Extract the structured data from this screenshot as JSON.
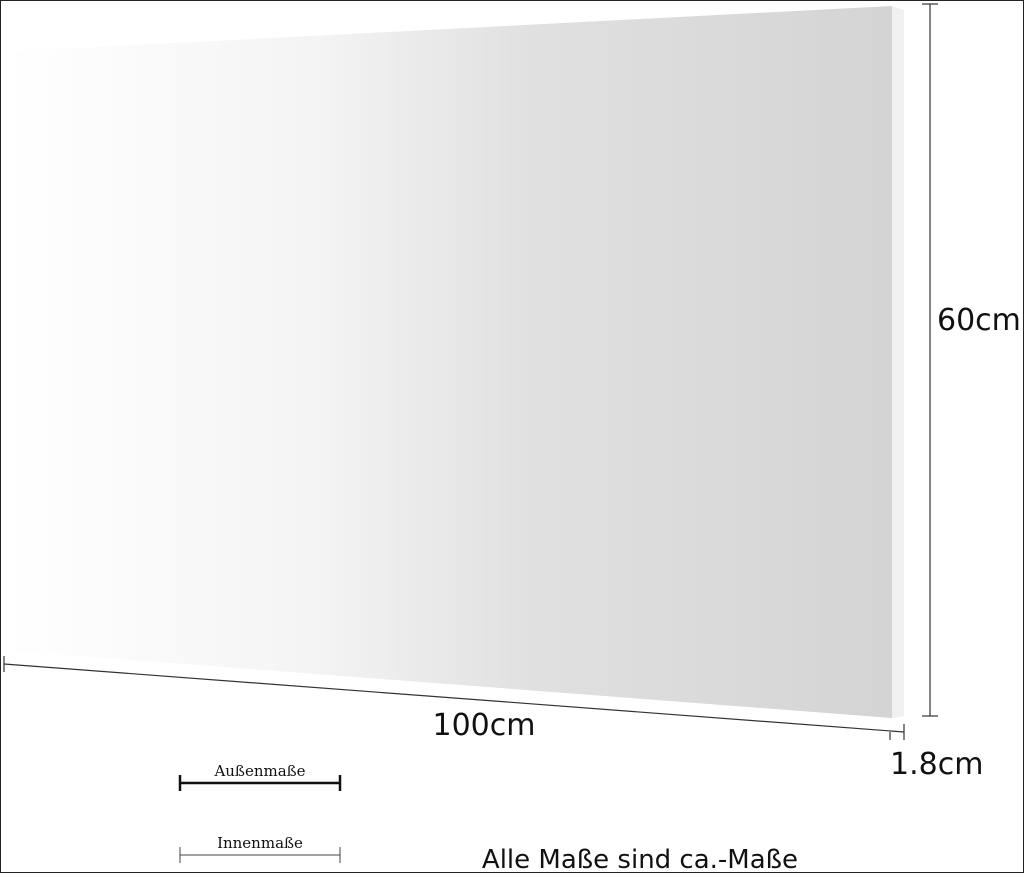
{
  "dimensions": {
    "height": "60cm",
    "width": "100cm",
    "depth": "1.8cm"
  },
  "legend": {
    "outer": "Außenmaße",
    "inner": "Innenmaße"
  },
  "note": "Alle Maße sind ca.-Maße"
}
